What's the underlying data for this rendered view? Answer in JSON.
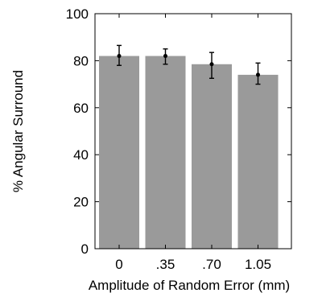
{
  "chart_data": {
    "type": "bar",
    "title": "",
    "xlabel": "Amplitude of Random Error (mm)",
    "ylabel": "% Angular Surround",
    "categories": [
      "0",
      ".35",
      ".70",
      "1.05"
    ],
    "values": [
      82,
      82,
      78.5,
      74
    ],
    "error_bars": [
      {
        "low": 78,
        "high": 86.5
      },
      {
        "low": 78.5,
        "high": 85
      },
      {
        "low": 72.5,
        "high": 83.5
      },
      {
        "low": 70,
        "high": 79
      }
    ],
    "point_markers": [
      82,
      82,
      78.5,
      74
    ],
    "ylim": [
      0,
      100
    ],
    "yticks": [
      "0",
      "20",
      "40",
      "60",
      "80",
      "100"
    ],
    "grid": false,
    "legend": "none",
    "colors": {
      "bar": "#9a9a9a",
      "axis": "#000000",
      "errorbar": "#000000",
      "background": "#ffffff"
    }
  }
}
